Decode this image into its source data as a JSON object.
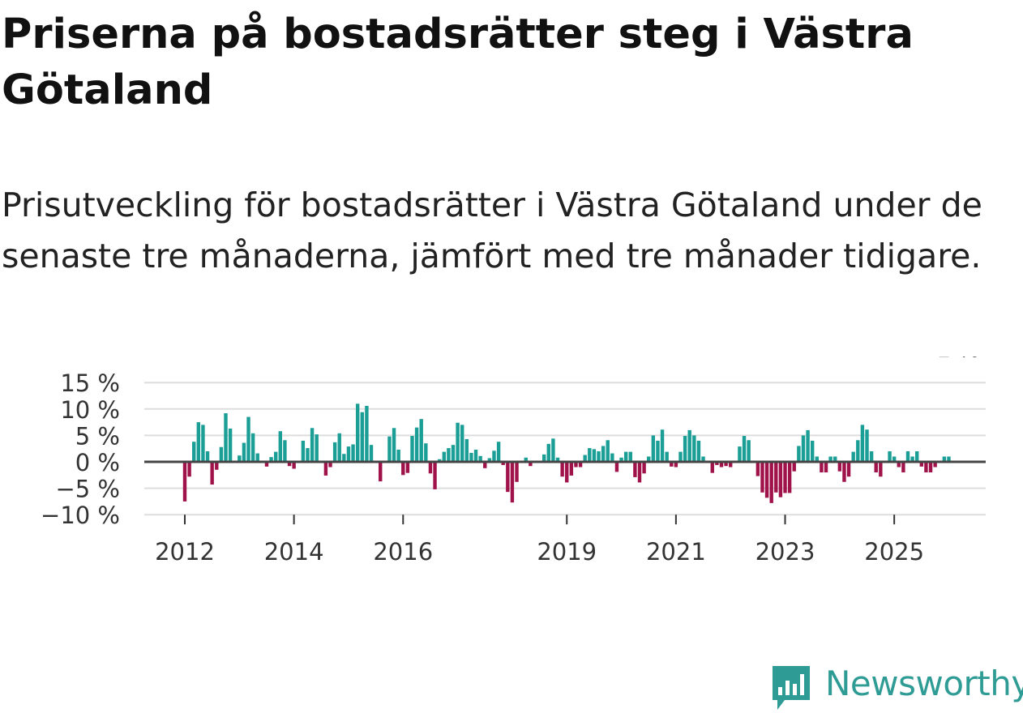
{
  "title": "Priserna på bostadsrätter steg i Västra Götaland",
  "subtitle": "Prisutveckling för bostadsrätter i Västra Götaland under de senaste tre månaderna, jämfört med tre månader tidigare.",
  "brand": {
    "name": "Newsworthy",
    "icon": "newsworthy-logo-icon",
    "color": "#2e9c95"
  },
  "colors": {
    "positive": "#1a9e96",
    "negative": "#a0124a",
    "zero_line": "#444444",
    "grid": "#dddddd"
  },
  "chart_data": {
    "type": "bar",
    "title": "Prisutveckling för bostadsrätter i Västra Götaland under de senaste tre månaderna, jämfört med tre månader tidigare.",
    "xlabel": "",
    "ylabel": "",
    "ylim": [
      -10,
      15
    ],
    "y_ticks": [
      {
        "value": 15,
        "label": "15 %"
      },
      {
        "value": 10,
        "label": "10 %"
      },
      {
        "value": 5,
        "label": "5 %"
      },
      {
        "value": 0,
        "label": "0 %"
      },
      {
        "value": -5,
        "label": "−5 %"
      },
      {
        "value": -10,
        "label": "−10 %"
      }
    ],
    "x_ticks": [
      {
        "index": 0,
        "label": "2012"
      },
      {
        "index": 24,
        "label": "2014"
      },
      {
        "index": 48,
        "label": "2016"
      },
      {
        "index": 84,
        "label": "2019"
      },
      {
        "index": 108,
        "label": "2021"
      },
      {
        "index": 132,
        "label": "2023"
      },
      {
        "index": 156,
        "label": "2025"
      }
    ],
    "start_period": "2012-01",
    "frequency": "monthly",
    "values": [
      -7.5,
      -2.8,
      3.8,
      7.5,
      7,
      2,
      -4.3,
      -1.5,
      2.8,
      9.2,
      6.3,
      0,
      1.2,
      3.6,
      8.5,
      5.4,
      1.6,
      0,
      -0.9,
      0.9,
      1.9,
      5.8,
      4.1,
      -0.8,
      -1.3,
      0,
      4,
      2.6,
      6.4,
      5.2,
      0,
      -2.6,
      -1,
      3.7,
      5.4,
      1.5,
      2.9,
      3.3,
      11,
      9.4,
      10.6,
      3.2,
      0,
      -3.7,
      0,
      4.8,
      6.4,
      2.3,
      -2.5,
      -2.1,
      4.9,
      6.5,
      8.1,
      3.5,
      -2.2,
      -5.2,
      0.5,
      1.9,
      2.6,
      3.2,
      7.4,
      7,
      4.3,
      1.7,
      2.3,
      1.1,
      -1.2,
      0.7,
      2.1,
      3.8,
      -0.6,
      -5.7,
      -7.7,
      -3.8,
      0,
      0.8,
      -0.8,
      0,
      0.2,
      1.4,
      3.4,
      4.4,
      0.8,
      -2.8,
      -3.9,
      -2.6,
      -1,
      -1,
      1.3,
      2.6,
      2.4,
      2,
      3,
      4.1,
      1.6,
      -1.9,
      0.8,
      1.9,
      1.9,
      -2.9,
      -3.9,
      -2.2,
      1,
      5,
      4,
      6.1,
      1.9,
      -0.9,
      -1,
      1.9,
      4.9,
      6,
      5,
      4,
      1,
      0,
      -2.1,
      -0.6,
      -1,
      -0.8,
      -1,
      0.2,
      2.9,
      4.9,
      4.1,
      0,
      -2.7,
      -5.8,
      -6.8,
      -7.8,
      -5.8,
      -6.7,
      -5.9,
      -5.9,
      -1.8,
      3,
      5,
      6,
      4,
      1,
      -2,
      -2,
      1,
      1,
      -1.8,
      -3.8,
      -2.8,
      1.9,
      4.1,
      7,
      6.1,
      2,
      -2,
      -2.8,
      0,
      2,
      1,
      -1,
      -2,
      2,
      1,
      2,
      -0.9,
      -2,
      -2,
      -1,
      0,
      1,
      1
    ],
    "annotation": {
      "index": 172,
      "label": "1 %"
    }
  }
}
